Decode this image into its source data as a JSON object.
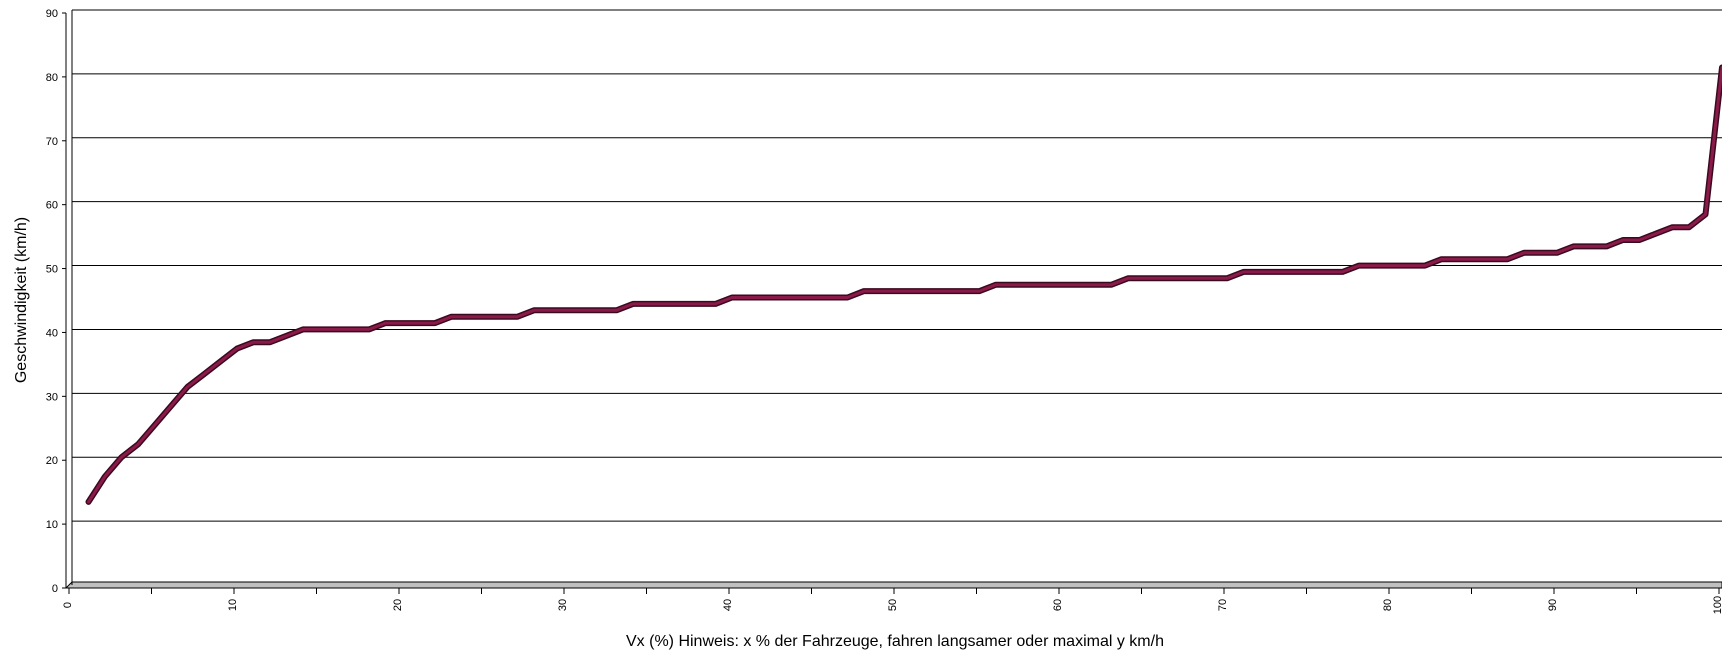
{
  "chart_data": {
    "type": "line",
    "title": "",
    "xlabel": "Vx (%) Hinweis: x % der Fahrzeuge, fahren langsamer oder maximal y km/h",
    "ylabel": "Geschwindigkeit (km/h)",
    "xlim": [
      0,
      100
    ],
    "ylim": [
      0,
      90
    ],
    "x_ticks": [
      0,
      10,
      20,
      30,
      40,
      50,
      60,
      70,
      80,
      90,
      100
    ],
    "y_ticks": [
      0,
      10,
      20,
      30,
      40,
      50,
      60,
      70,
      80,
      90
    ],
    "grid": "horizontal",
    "legend": "none",
    "line_color": "#8b1a4a",
    "series": [
      {
        "x": [
          1,
          2,
          3,
          4,
          5,
          6,
          7,
          8,
          9,
          10,
          11,
          12,
          13,
          14,
          15,
          16,
          17,
          18,
          19,
          20,
          21,
          22,
          23,
          24,
          25,
          26,
          27,
          28,
          29,
          30,
          31,
          32,
          33,
          34,
          35,
          36,
          37,
          38,
          39,
          40,
          41,
          42,
          43,
          44,
          45,
          46,
          47,
          48,
          49,
          50,
          51,
          52,
          53,
          54,
          55,
          56,
          57,
          58,
          59,
          60,
          61,
          62,
          63,
          64,
          65,
          66,
          67,
          68,
          69,
          70,
          71,
          72,
          73,
          74,
          75,
          76,
          77,
          78,
          79,
          80,
          81,
          82,
          83,
          84,
          85,
          86,
          87,
          88,
          89,
          90,
          91,
          92,
          93,
          94,
          95,
          96,
          97,
          98,
          99,
          100
        ],
        "y": [
          13,
          17,
          20,
          22,
          25,
          28,
          31,
          33,
          35,
          37,
          38,
          38,
          39,
          40,
          40,
          40,
          40,
          40,
          41,
          41,
          41,
          41,
          42,
          42,
          42,
          42,
          42,
          43,
          43,
          43,
          43,
          43,
          43,
          44,
          44,
          44,
          44,
          44,
          44,
          45,
          45,
          45,
          45,
          45,
          45,
          45,
          45,
          46,
          46,
          46,
          46,
          46,
          46,
          46,
          46,
          47,
          47,
          47,
          47,
          47,
          47,
          47,
          47,
          48,
          48,
          48,
          48,
          48,
          48,
          48,
          49,
          49,
          49,
          49,
          49,
          49,
          49,
          50,
          50,
          50,
          50,
          50,
          51,
          51,
          51,
          51,
          51,
          52,
          52,
          52,
          53,
          53,
          53,
          54,
          54,
          55,
          56,
          56,
          58,
          81
        ]
      }
    ]
  }
}
